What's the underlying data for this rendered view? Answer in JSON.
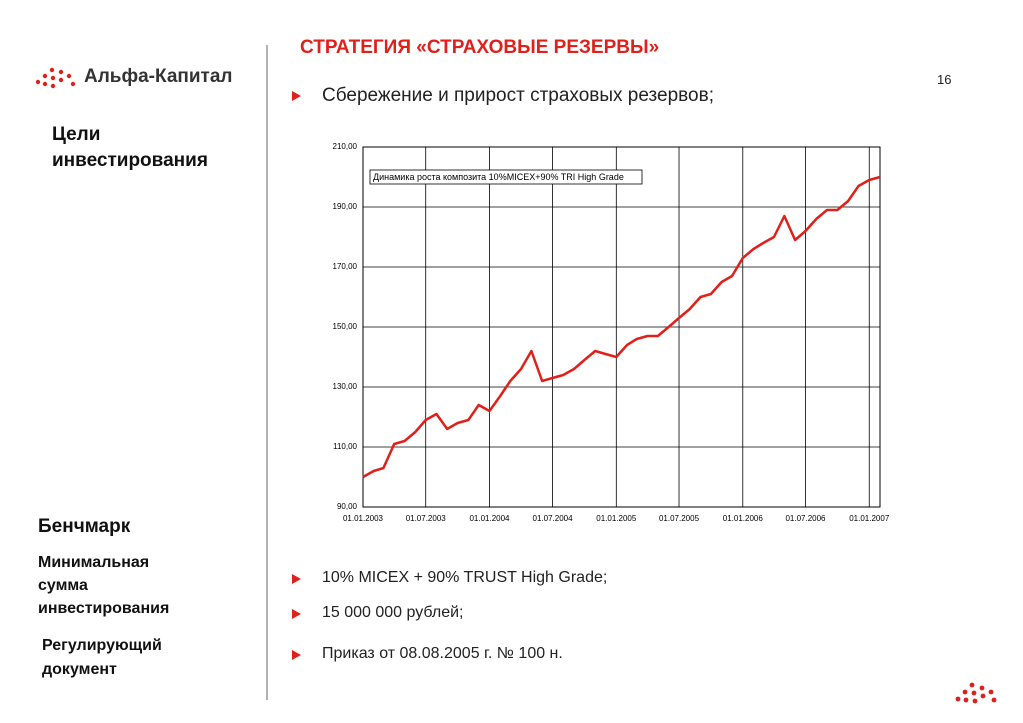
{
  "logo": "Альфа-Капитал",
  "page_number": "16",
  "title": "СТРАТЕГИЯ «СТРАХОВЫЕ РЕЗЕРВЫ»",
  "sidebar": [
    "Цели инвестирования",
    "Бенчмарк",
    "Минимальная сумма инвестирования",
    "Регулирующий документ"
  ],
  "bullets": [
    "Сбережение и прирост страховых резервов;",
    "10% MICEX + 90% TRUST High Grade;",
    "15 000 000 рублей;",
    "Приказ от 08.08.2005 г. № 100 н."
  ],
  "chart_data": {
    "type": "line",
    "xlim": [
      "2003-01-01",
      "2007-02-01"
    ],
    "xticks": [
      {
        "value": "2003-01-01",
        "label": "01.01.2003"
      },
      {
        "value": "2003-07-01",
        "label": "01.07.2003"
      },
      {
        "value": "2004-01-01",
        "label": "01.01.2004"
      },
      {
        "value": "2004-07-01",
        "label": "01.07.2004"
      },
      {
        "value": "2005-01-01",
        "label": "01.01.2005"
      },
      {
        "value": "2005-07-01",
        "label": "01.07.2005"
      },
      {
        "value": "2006-01-01",
        "label": "01.01.2006"
      },
      {
        "value": "2006-07-01",
        "label": "01.07.2006"
      },
      {
        "value": "2007-01-01",
        "label": "01.01.2007"
      }
    ],
    "ylim": [
      90,
      210
    ],
    "yticks": [
      {
        "value": 90,
        "label": "90,00"
      },
      {
        "value": 110,
        "label": "110,00"
      },
      {
        "value": 130,
        "label": "130,00"
      },
      {
        "value": 150,
        "label": "150,00"
      },
      {
        "value": 170,
        "label": "170,00"
      },
      {
        "value": 190,
        "label": "190,00"
      },
      {
        "value": 210,
        "label": "210,00"
      }
    ],
    "grid": true,
    "series": [
      {
        "name": "Динамика роста композита 10%MICEX+90% TRI High Grade",
        "color": "#e0201b",
        "x": [
          "2003-01-01",
          "2003-02-01",
          "2003-03-01",
          "2003-04-01",
          "2003-05-01",
          "2003-06-01",
          "2003-07-01",
          "2003-08-01",
          "2003-09-01",
          "2003-10-01",
          "2003-11-01",
          "2003-12-01",
          "2004-01-01",
          "2004-02-01",
          "2004-03-01",
          "2004-04-01",
          "2004-05-01",
          "2004-06-01",
          "2004-07-01",
          "2004-08-01",
          "2004-09-01",
          "2004-10-01",
          "2004-11-01",
          "2004-12-01",
          "2005-01-01",
          "2005-02-01",
          "2005-03-01",
          "2005-04-01",
          "2005-05-01",
          "2005-06-01",
          "2005-07-01",
          "2005-08-01",
          "2005-09-01",
          "2005-10-01",
          "2005-11-01",
          "2005-12-01",
          "2006-01-01",
          "2006-02-01",
          "2006-03-01",
          "2006-04-01",
          "2006-05-01",
          "2006-06-01",
          "2006-07-01",
          "2006-08-01",
          "2006-09-01",
          "2006-10-01",
          "2006-11-01",
          "2006-12-01",
          "2007-01-01",
          "2007-02-01"
        ],
        "values": [
          100,
          102,
          103,
          111,
          112,
          115,
          119,
          121,
          116,
          118,
          119,
          124,
          122,
          127,
          132,
          136,
          142,
          132,
          133,
          134,
          136,
          139,
          142,
          141,
          140,
          144,
          146,
          147,
          147,
          150,
          153,
          156,
          160,
          161,
          165,
          167,
          173,
          176,
          178,
          180,
          187,
          179,
          182,
          186,
          189,
          189,
          192,
          197,
          199,
          200
        ]
      }
    ]
  }
}
